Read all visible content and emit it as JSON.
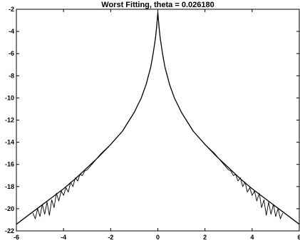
{
  "chart_data": {
    "type": "line",
    "title": "Worst Fitting, theta = 0.026180",
    "xlabel": "",
    "ylabel": "",
    "xlim": [
      -6,
      6
    ],
    "ylim": [
      -22,
      -2
    ],
    "xticks": [
      -6,
      -4,
      -2,
      0,
      2,
      4,
      6
    ],
    "yticks": [
      -22,
      -20,
      -18,
      -16,
      -14,
      -12,
      -10,
      -8,
      -6,
      -4,
      -2
    ],
    "grid": false,
    "series": [
      {
        "style": "solid",
        "x": [
          -6,
          -5.5,
          -5,
          -4.5,
          -4,
          -3.5,
          -3,
          -2.5,
          -2,
          -1.5,
          -1,
          -0.7,
          -0.5,
          -0.3,
          -0.2,
          -0.1,
          -0.05,
          0,
          0.05,
          0.1,
          0.2,
          0.3,
          0.5,
          0.7,
          1,
          1.5,
          2,
          2.5,
          3,
          3.5,
          4,
          4.5,
          5,
          5.5,
          6
        ],
        "y": [
          -21.4,
          -20.6,
          -19.8,
          -19.0,
          -18.2,
          -17.3,
          -16.3,
          -15.3,
          -14.2,
          -13.0,
          -11.3,
          -10.0,
          -8.8,
          -7.2,
          -6.0,
          -4.6,
          -3.6,
          -2.3,
          -3.6,
          -4.6,
          -6.0,
          -7.2,
          -8.8,
          -10.0,
          -11.3,
          -13.0,
          -14.2,
          -15.3,
          -16.3,
          -17.3,
          -18.2,
          -19.0,
          -19.8,
          -20.6,
          -21.4
        ]
      },
      {
        "style": "noisy",
        "x": [
          -5.3,
          -5.2,
          -5.1,
          -5.0,
          -4.9,
          -4.8,
          -4.7,
          -4.6,
          -4.5,
          -4.4,
          -4.3,
          -4.2,
          -4.1,
          -4.0,
          -3.9,
          -3.8,
          -3.7,
          -3.6,
          -3.5,
          -3.4,
          -3.3,
          -3.2,
          -3.1,
          -3.0,
          -2.8,
          -2.6,
          -2.4,
          -2.2,
          -2.0
        ],
        "y": [
          -20.4,
          -20.9,
          -20.0,
          -20.7,
          -19.6,
          -20.5,
          -19.4,
          -20.6,
          -19.2,
          -19.9,
          -18.6,
          -19.3,
          -18.4,
          -18.8,
          -18.1,
          -18.5,
          -17.6,
          -18.0,
          -17.2,
          -17.5,
          -16.9,
          -17.0,
          -16.6,
          -16.5,
          -16.0,
          -15.5,
          -15.0,
          -14.6,
          -14.2
        ]
      },
      {
        "style": "noisy",
        "x": [
          2.0,
          2.2,
          2.4,
          2.6,
          2.8,
          3.0,
          3.1,
          3.2,
          3.3,
          3.4,
          3.5,
          3.6,
          3.7,
          3.8,
          3.9,
          4.0,
          4.1,
          4.2,
          4.3,
          4.4,
          4.5,
          4.6,
          4.7,
          4.8,
          4.9,
          5.0,
          5.1,
          5.2,
          5.3
        ],
        "y": [
          -14.2,
          -14.6,
          -15.0,
          -15.5,
          -16.0,
          -16.5,
          -16.6,
          -17.0,
          -16.9,
          -17.5,
          -17.2,
          -18.0,
          -17.6,
          -18.5,
          -18.1,
          -18.8,
          -18.4,
          -19.3,
          -18.6,
          -19.9,
          -19.2,
          -20.6,
          -19.4,
          -20.5,
          -19.6,
          -20.7,
          -20.0,
          -20.9,
          -20.4
        ]
      }
    ]
  }
}
